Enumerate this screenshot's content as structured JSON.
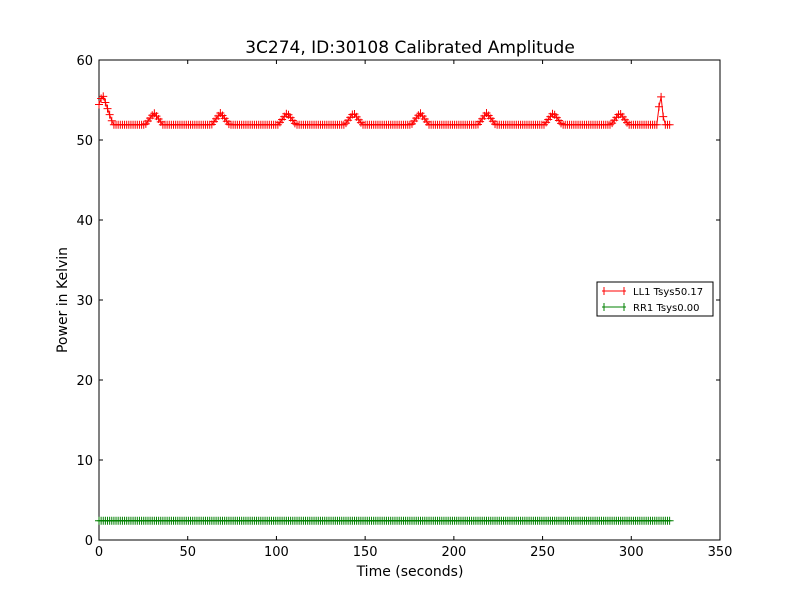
{
  "chart_data": {
    "type": "line",
    "title": "3C274, ID:30108 Calibrated Amplitude",
    "xlabel": "Time (seconds)",
    "ylabel": "Power in Kelvin",
    "xlim": [
      0,
      350
    ],
    "ylim": [
      0,
      60
    ],
    "xticks": [
      0,
      50,
      100,
      150,
      200,
      250,
      300,
      350
    ],
    "yticks": [
      0,
      10,
      20,
      30,
      40,
      50,
      60
    ],
    "grid": false,
    "legend_position": "right",
    "x_sample_step": 1.2,
    "series": [
      {
        "name": "LL1 Tsys50.17",
        "color": "#ff0000",
        "marker": "plus",
        "x_start": 0,
        "x_end": 322,
        "baseline": 51.9,
        "peaks": [
          {
            "x": 2,
            "y": 55.7,
            "width": 6
          },
          {
            "x": 31,
            "y": 53.4,
            "width": 5
          },
          {
            "x": 68.5,
            "y": 53.4,
            "width": 5
          },
          {
            "x": 106,
            "y": 53.4,
            "width": 5
          },
          {
            "x": 143.5,
            "y": 53.4,
            "width": 5
          },
          {
            "x": 181,
            "y": 53.4,
            "width": 5
          },
          {
            "x": 218.5,
            "y": 53.4,
            "width": 5
          },
          {
            "x": 256,
            "y": 53.4,
            "width": 5
          },
          {
            "x": 293.5,
            "y": 53.4,
            "width": 5
          },
          {
            "x": 316.5,
            "y": 56.0,
            "width": 2
          }
        ]
      },
      {
        "name": "RR1 Tsys0.00",
        "color": "#008000",
        "marker": "plus",
        "x_start": 0,
        "x_end": 322,
        "baseline": 2.4,
        "peaks": []
      }
    ]
  }
}
